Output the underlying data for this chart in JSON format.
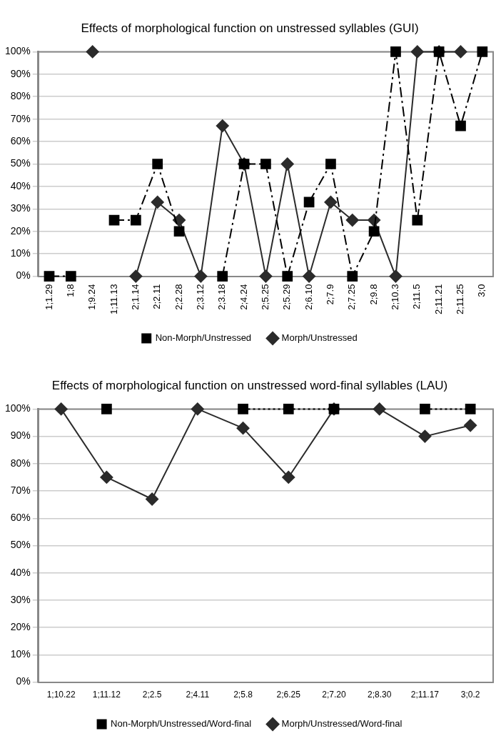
{
  "chart_data": [
    {
      "type": "line",
      "title": "Effects of morphological function on unstressed syllables (GUI)",
      "categories": [
        "1;1.29",
        "1;8",
        "1;9.24",
        "1;11.13",
        "2;1.14",
        "2;2.11",
        "2;2.28",
        "2;3.12",
        "2;3.18",
        "2;4.24",
        "2;5.25",
        "2;5.29",
        "2;6.10",
        "2;7.9",
        "2;7.25",
        "2;9.8",
        "2;10.3",
        "2;11.5",
        "2;11.21",
        "2;11.25",
        "3;0"
      ],
      "series": [
        {
          "name": "Morph/Unstressed",
          "color": "#2b2b2b",
          "marker": "diamond",
          "line_style": "solid",
          "values": [
            null,
            null,
            100,
            null,
            0,
            33,
            25,
            0,
            67,
            50,
            0,
            50,
            0,
            33,
            25,
            25,
            0,
            100,
            100,
            100,
            null
          ]
        },
        {
          "name": "Non-Morph/Unstressed",
          "color": "#000000",
          "marker": "square",
          "line_style": "dashed",
          "values": [
            0,
            0,
            null,
            25,
            25,
            50,
            20,
            null,
            0,
            50,
            50,
            0,
            33,
            50,
            0,
            20,
            100,
            25,
            100,
            67,
            100
          ]
        }
      ],
      "ylim": [
        0,
        100
      ],
      "yticks": [
        {
          "value": 0,
          "label": "0%"
        },
        {
          "value": 10,
          "label": "10%"
        },
        {
          "value": 20,
          "label": "20%"
        },
        {
          "value": 30,
          "label": "30%"
        },
        {
          "value": 40,
          "label": "40%"
        },
        {
          "value": 50,
          "label": "50%"
        },
        {
          "value": 60,
          "label": "60%"
        },
        {
          "value": 70,
          "label": "70%"
        },
        {
          "value": 80,
          "label": "80%"
        },
        {
          "value": 90,
          "label": "90%"
        },
        {
          "value": 100,
          "label": "100%"
        }
      ],
      "grid": "y",
      "legend": "bottom"
    },
    {
      "type": "line",
      "title": "Effects of morphological function on unstressed word-final syllables (LAU)",
      "categories": [
        "1;10.22",
        "1;11.12",
        "2;2.5",
        "2;4.11",
        "2;5.8",
        "2;6.25",
        "2;7.20",
        "2;8.30",
        "2;11.17",
        "3;0.2"
      ],
      "series": [
        {
          "name": "Morph/Unstressed/Word-final",
          "color": "#2b2b2b",
          "marker": "diamond",
          "line_style": "solid",
          "values": [
            100,
            75,
            67,
            100,
            93,
            75,
            100,
            100,
            90,
            94
          ]
        },
        {
          "name": "Non-Morph/Unstressed/Word-final",
          "color": "#000000",
          "marker": "square",
          "line_style": "dotted",
          "values": [
            null,
            100,
            null,
            null,
            100,
            100,
            100,
            null,
            100,
            100
          ]
        }
      ],
      "ylim": [
        0,
        100
      ],
      "yticks": [
        {
          "value": 0,
          "label": "0%"
        },
        {
          "value": 10,
          "label": "10%"
        },
        {
          "value": 20,
          "label": "20%"
        },
        {
          "value": 30,
          "label": "30%"
        },
        {
          "value": 40,
          "label": "40%"
        },
        {
          "value": 50,
          "label": "50%"
        },
        {
          "value": 60,
          "label": "60%"
        },
        {
          "value": 70,
          "label": "70%"
        },
        {
          "value": 80,
          "label": "80%"
        },
        {
          "value": 90,
          "label": "90%"
        },
        {
          "value": 100,
          "label": "100%"
        }
      ],
      "grid": "y",
      "legend": "bottom"
    }
  ]
}
